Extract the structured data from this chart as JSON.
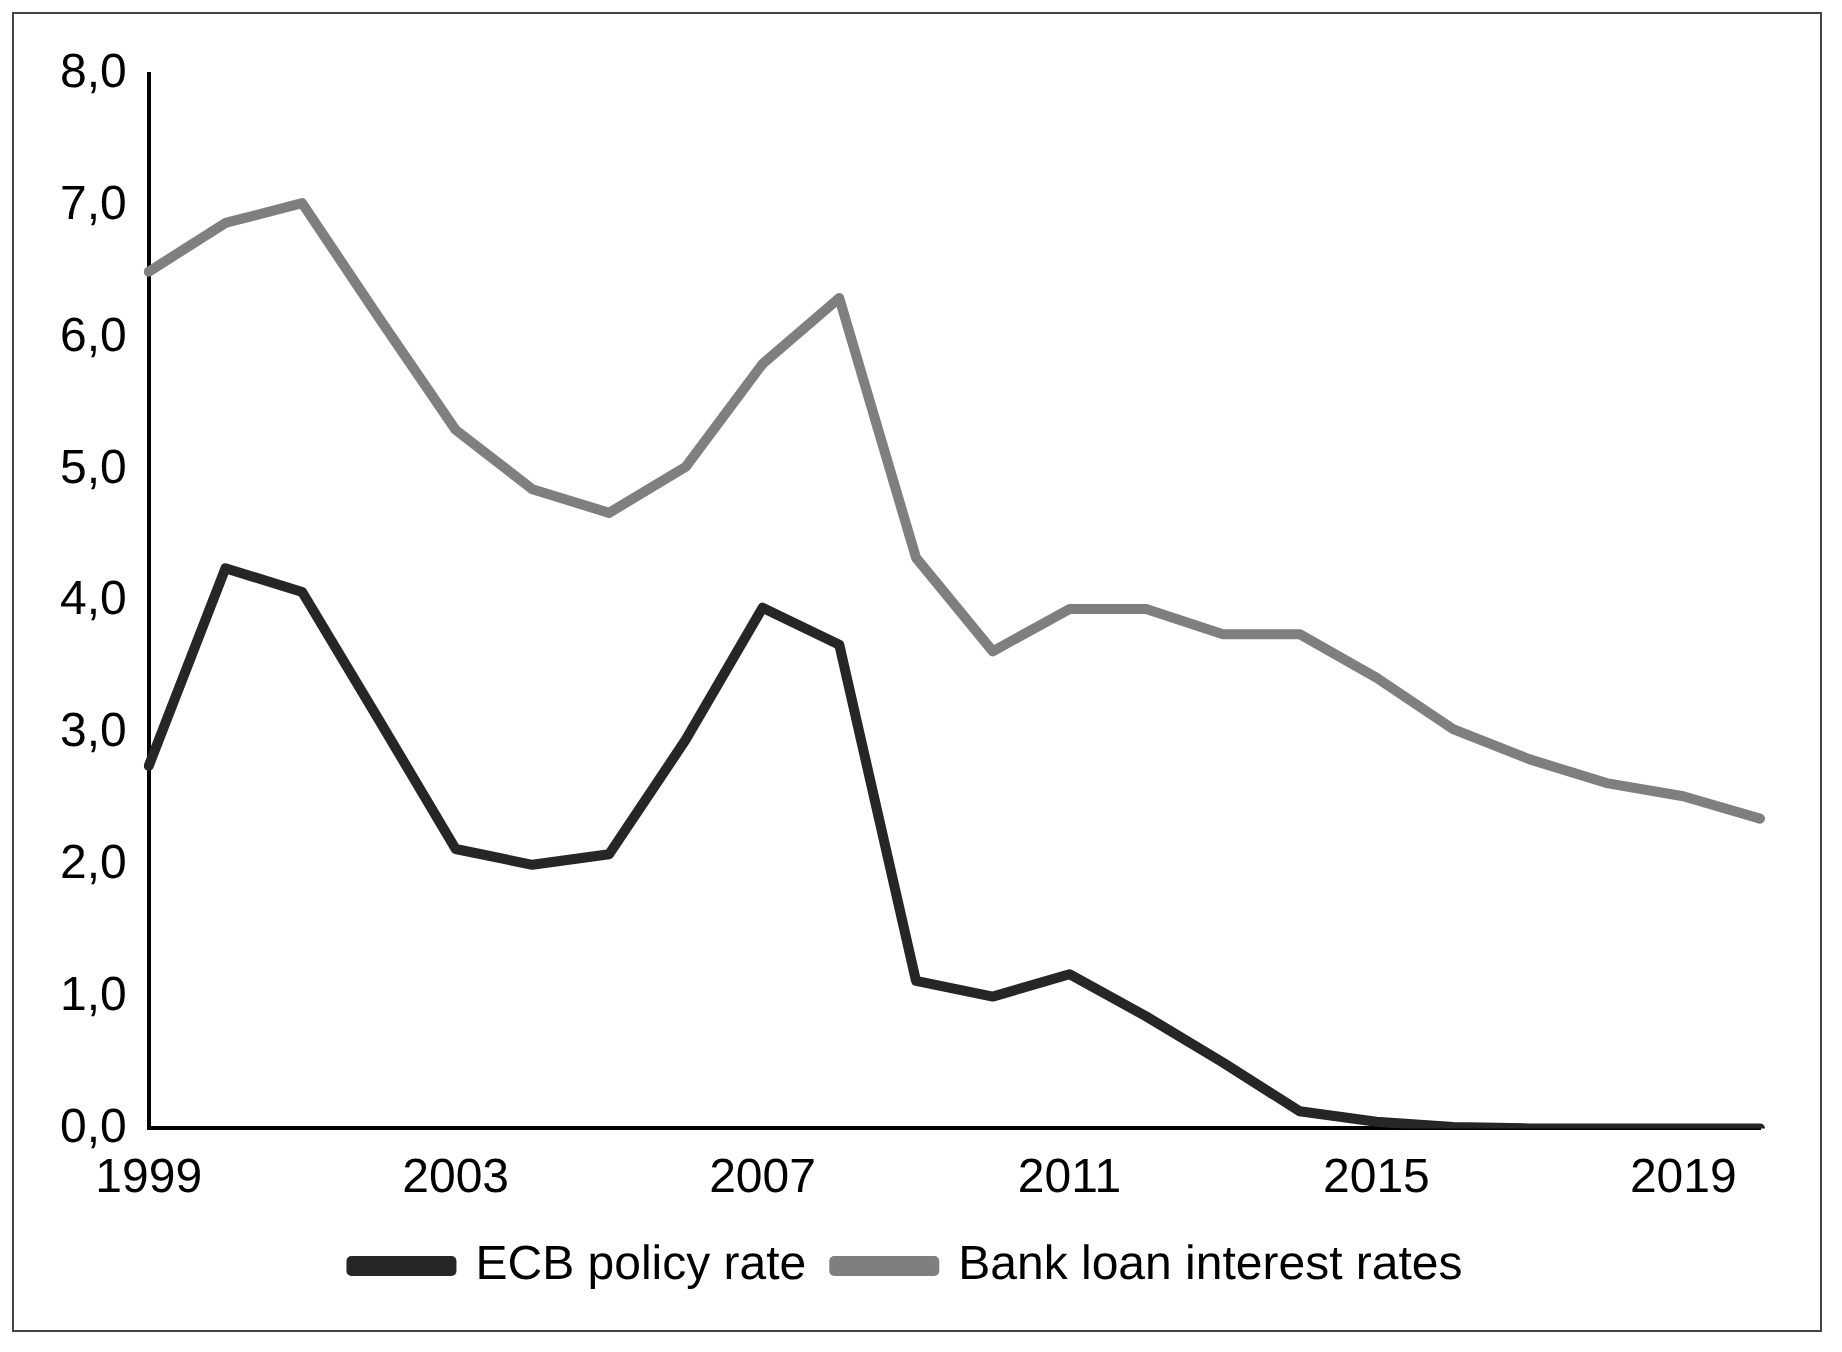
{
  "chart_data": {
    "type": "line",
    "categories": [
      "1999",
      null,
      null,
      null,
      "2003",
      null,
      null,
      null,
      "2007",
      null,
      null,
      null,
      "2011",
      null,
      null,
      null,
      "2015",
      null,
      null,
      null,
      "2019",
      null
    ],
    "series": [
      {
        "name": "ECB policy rate",
        "color": "#262626",
        "values": [
          2.75,
          4.25,
          4.07,
          3.1,
          2.12,
          2.0,
          2.08,
          2.95,
          3.95,
          3.67,
          1.12,
          1.0,
          1.17,
          0.85,
          0.5,
          0.13,
          0.05,
          0.01,
          0,
          0,
          0,
          0
        ]
      },
      {
        "name": "Bank loan interest rates",
        "color": "#7f7f7f",
        "values": [
          6.5,
          6.87,
          7.02,
          6.15,
          5.3,
          4.85,
          4.67,
          5.02,
          5.8,
          6.3,
          4.33,
          3.62,
          3.94,
          3.94,
          3.75,
          3.75,
          3.42,
          3.03,
          2.8,
          2.62,
          2.52,
          2.35
        ]
      }
    ],
    "ylim": [
      0,
      8
    ],
    "yticks": [
      {
        "value": 0,
        "label": "0,0"
      },
      {
        "value": 1,
        "label": "1,0"
      },
      {
        "value": 2,
        "label": "2,0"
      },
      {
        "value": 3,
        "label": "3,0"
      },
      {
        "value": 4,
        "label": "4,0"
      },
      {
        "value": 5,
        "label": "5,0"
      },
      {
        "value": 6,
        "label": "6,0"
      },
      {
        "value": 7,
        "label": "7,0"
      },
      {
        "value": 8,
        "label": "8,0"
      }
    ],
    "grid": false,
    "legend": "bottom",
    "marker": "none",
    "line_style": "solid"
  }
}
